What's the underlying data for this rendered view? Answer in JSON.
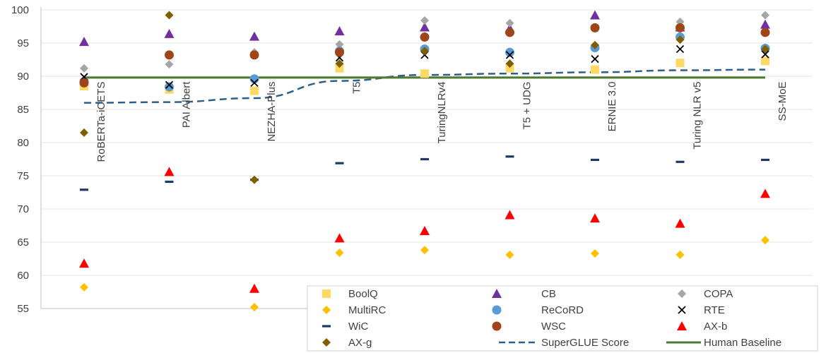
{
  "chart_data": {
    "type": "scatter",
    "categories": [
      "RoBERTa-iCETS",
      "PAI Albert",
      "NEZHA-Plus",
      "T5",
      "TuringNLRv4",
      "T5 + UDG",
      "ERNIE 3.0",
      "Turing NLR v5",
      "SS-MoE"
    ],
    "ylim": [
      55,
      100
    ],
    "yticks": [
      55,
      60,
      65,
      70,
      75,
      80,
      85,
      90,
      95,
      100
    ],
    "grid": true,
    "legend_position": "bottom-right",
    "series": [
      {
        "name": "BoolQ",
        "marker": "square",
        "color": "#FFD966",
        "values": [
          88.5,
          88.0,
          87.8,
          91.2,
          90.4,
          91.2,
          91.0,
          92.0,
          92.3
        ]
      },
      {
        "name": "CB",
        "marker": "triangle",
        "color": "#7030A0",
        "values": [
          95.2,
          96.4,
          96.0,
          96.8,
          97.4,
          97.2,
          99.2,
          97.4,
          97.8
        ]
      },
      {
        "name": "COPA",
        "marker": "diamond",
        "color": "#A6A6A6",
        "values": [
          91.2,
          91.8,
          93.6,
          94.8,
          98.4,
          98.0,
          97.2,
          98.2,
          99.2
        ]
      },
      {
        "name": "MultiRC",
        "marker": "diamond",
        "color": "#FFC000",
        "values": [
          58.2,
          88.2,
          55.2,
          63.4,
          63.8,
          63.1,
          63.3,
          63.1,
          65.3
        ]
      },
      {
        "name": "ReCoRD",
        "marker": "circle",
        "color": "#5B9BD5",
        "values": [
          89.2,
          88.4,
          89.6,
          93.8,
          94.1,
          93.6,
          94.3,
          95.9,
          94.2
        ]
      },
      {
        "name": "RTE",
        "marker": "x",
        "color": "#000000",
        "values": [
          89.9,
          88.7,
          89.0,
          92.8,
          93.2,
          93.2,
          92.6,
          94.1,
          93.3
        ]
      },
      {
        "name": "WiC",
        "marker": "dash",
        "color": "#1F3864",
        "values": [
          72.9,
          74.1,
          74.4,
          76.9,
          77.5,
          77.9,
          77.4,
          77.1,
          77.4
        ]
      },
      {
        "name": "WSC",
        "marker": "circle",
        "color": "#A0441A",
        "values": [
          89.0,
          93.2,
          93.2,
          93.6,
          95.9,
          96.6,
          97.3,
          97.3,
          96.6
        ]
      },
      {
        "name": "AX-b",
        "marker": "triangle",
        "color": "#FF0000",
        "values": [
          61.8,
          75.6,
          58.0,
          65.6,
          66.7,
          69.1,
          68.6,
          67.8,
          72.3
        ]
      },
      {
        "name": "AX-g",
        "marker": "diamond",
        "color": "#7F6000",
        "values": [
          81.5,
          99.2,
          74.4,
          91.9,
          93.8,
          91.9,
          94.7,
          95.5,
          94.1
        ]
      },
      {
        "name": "SuperGLUE Score",
        "marker": "dashed-line",
        "color": "#2E5F8A",
        "values": [
          86.0,
          86.1,
          86.7,
          89.3,
          90.2,
          90.4,
          90.6,
          90.9,
          91.0
        ]
      },
      {
        "name": "Human Baseline",
        "marker": "solid-line",
        "color": "#4E7A2E",
        "values": [
          89.8,
          89.8,
          89.8,
          89.8,
          89.8,
          89.8,
          89.8,
          89.8,
          89.8
        ]
      }
    ]
  }
}
